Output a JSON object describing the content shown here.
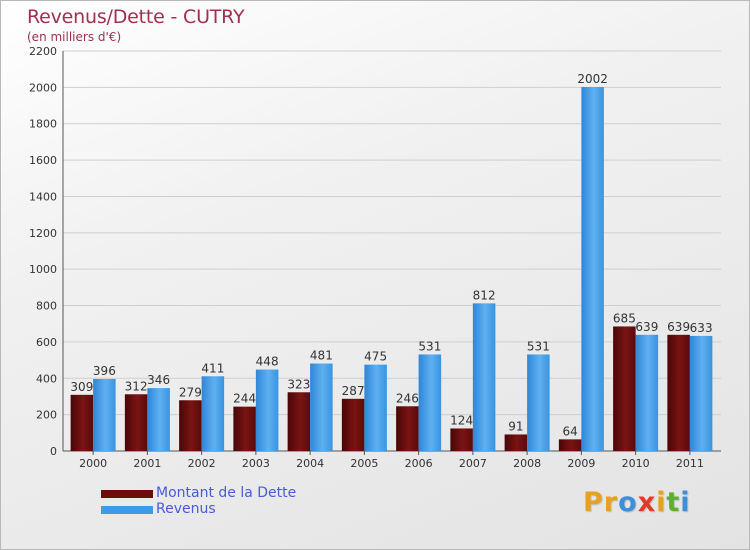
{
  "title": "Revenus/Dette - CUTRY",
  "subtitle": "(en milliers d'€)",
  "colors": {
    "title": "#a0304e",
    "dette": "#6b0d0d",
    "revenus": "#3d9be8",
    "legend_text": "#4a59d8"
  },
  "legend": [
    {
      "label": "Montant de la Dette",
      "color": "#6b0d0d"
    },
    {
      "label": "Revenus",
      "color": "#3d9be8"
    }
  ],
  "brand": {
    "letters": [
      {
        "ch": "P",
        "color": "#e8a020"
      },
      {
        "ch": "r",
        "color": "#e8a020"
      },
      {
        "ch": "o",
        "color": "#3c8fd8"
      },
      {
        "ch": "x",
        "color": "#e23a2a"
      },
      {
        "ch": "i",
        "color": "#e8a020"
      },
      {
        "ch": "t",
        "color": "#5fb030"
      },
      {
        "ch": "i",
        "color": "#3c8fd8"
      }
    ]
  },
  "chart_data": {
    "type": "bar",
    "categories": [
      "2000",
      "2001",
      "2002",
      "2003",
      "2004",
      "2005",
      "2006",
      "2007",
      "2008",
      "2009",
      "2010",
      "2011"
    ],
    "series": [
      {
        "name": "Montant de la Dette",
        "color": "#6b0d0d",
        "values": [
          309,
          312,
          279,
          244,
          323,
          287,
          246,
          124,
          91,
          64,
          685,
          639
        ]
      },
      {
        "name": "Revenus",
        "color": "#3d9be8",
        "values": [
          396,
          346,
          411,
          448,
          481,
          475,
          531,
          812,
          531,
          2002,
          639,
          633
        ]
      }
    ],
    "ylim": [
      0,
      2200
    ],
    "yticks": [
      0,
      200,
      400,
      600,
      800,
      1000,
      1200,
      1400,
      1600,
      1800,
      2000,
      2200
    ],
    "grid": true
  }
}
